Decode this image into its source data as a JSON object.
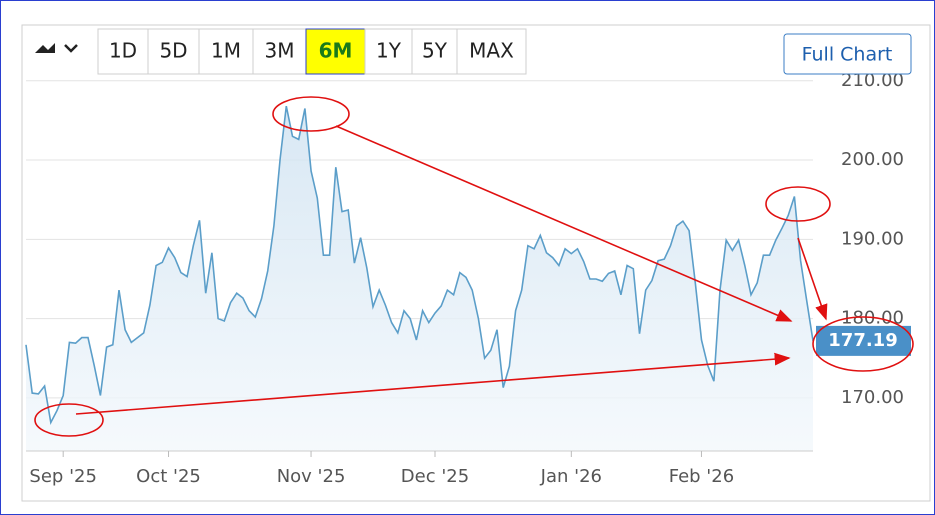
{
  "ui": {
    "range_buttons": [
      "1D",
      "5D",
      "1M",
      "3M",
      "6M",
      "1Y",
      "5Y",
      "MAX"
    ],
    "selected_button": 4,
    "full_chart": "Full Chart"
  },
  "chart_data": {
    "type": "area",
    "color": "#5b9ec9",
    "grid": true,
    "ylim": [
      163.3,
      210.6
    ],
    "yticks": [
      {
        "value": 170,
        "label": "170.00"
      },
      {
        "value": 180,
        "label": "180.00"
      },
      {
        "value": 190,
        "label": "190.00"
      },
      {
        "value": 200,
        "label": "200.00"
      },
      {
        "value": 210,
        "label": "210.00"
      }
    ],
    "categories": [
      null,
      null,
      null,
      null,
      null,
      null,
      "Sep '25",
      null,
      null,
      null,
      null,
      null,
      null,
      null,
      null,
      null,
      null,
      null,
      null,
      null,
      null,
      null,
      null,
      "Oct '25",
      null,
      null,
      null,
      null,
      null,
      null,
      null,
      null,
      null,
      null,
      null,
      null,
      null,
      null,
      null,
      null,
      null,
      null,
      null,
      null,
      null,
      null,
      "Nov '25",
      null,
      null,
      null,
      null,
      null,
      null,
      null,
      null,
      null,
      null,
      null,
      null,
      null,
      null,
      null,
      null,
      null,
      null,
      null,
      "Dec '25",
      null,
      null,
      null,
      null,
      null,
      null,
      null,
      null,
      null,
      null,
      null,
      null,
      null,
      null,
      null,
      null,
      null,
      null,
      null,
      null,
      null,
      "Jan '26",
      null,
      null,
      null,
      null,
      null,
      null,
      null,
      null,
      null,
      null,
      null,
      null,
      null,
      null,
      null,
      null,
      null,
      null,
      null,
      null,
      "Feb '26",
      null,
      null,
      null,
      null,
      null,
      null,
      null,
      null,
      null,
      null,
      null,
      null,
      null,
      null,
      null,
      null,
      null,
      null
    ],
    "values": [
      176.7,
      170.6,
      170.5,
      171.5,
      166.9,
      168.4,
      170.3,
      177.0,
      176.9,
      177.6,
      177.6,
      174.1,
      170.3,
      176.4,
      176.7,
      183.6,
      178.6,
      177.0,
      177.6,
      178.2,
      181.7,
      186.7,
      187.1,
      188.9,
      187.7,
      185.8,
      185.3,
      189.2,
      192.4,
      183.2,
      188.3,
      180.0,
      179.7,
      182.0,
      183.2,
      182.6,
      181.0,
      180.2,
      182.5,
      186.0,
      191.7,
      200.1,
      206.8,
      203.0,
      202.6,
      206.5,
      198.6,
      195.2,
      188.0,
      188.0,
      199.1,
      193.5,
      193.7,
      187.0,
      190.2,
      186.4,
      181.5,
      183.6,
      181.7,
      179.5,
      178.2,
      181.0,
      180.0,
      177.3,
      181.0,
      179.5,
      180.7,
      181.6,
      183.6,
      183.0,
      185.8,
      185.2,
      183.6,
      180.0,
      175.0,
      176.0,
      178.6,
      171.3,
      174.0,
      181.0,
      183.6,
      189.2,
      188.8,
      190.5,
      188.3,
      187.7,
      186.7,
      188.8,
      188.2,
      188.8,
      187.2,
      185.0,
      185.0,
      184.7,
      185.7,
      186.0,
      183.0,
      186.7,
      186.3,
      178.1,
      183.6,
      184.8,
      187.3,
      187.5,
      189.2,
      191.7,
      192.3,
      191.1,
      184.5,
      177.3,
      174.1,
      172.1,
      183.6,
      189.9,
      188.6,
      189.9,
      186.7,
      183.0,
      184.5,
      188.0,
      188.0,
      189.9,
      191.4,
      193.0,
      195.4,
      187.3,
      182.2,
      177.19
    ]
  }
}
